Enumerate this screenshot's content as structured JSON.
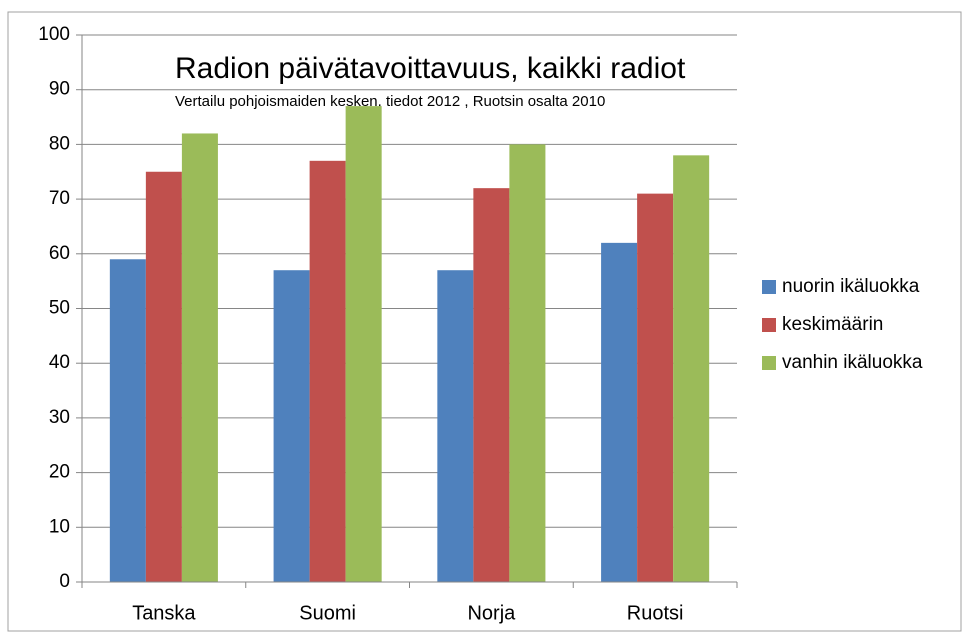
{
  "chart_data": {
    "type": "bar",
    "title": "Radion päivätavoittavuus,  kaikki radiot",
    "subtitle": "Vertailu pohjoismaiden  kesken, tiedot 2012 , Ruotsin osalta 2010",
    "categories": [
      "Tanska",
      "Suomi",
      "Norja",
      "Ruotsi"
    ],
    "series": [
      {
        "name": "nuorin ikäluokka",
        "color": "#4f81bd",
        "values": [
          59,
          57,
          57,
          62
        ]
      },
      {
        "name": "keskimäärin",
        "color": "#c0504d",
        "values": [
          75,
          77,
          72,
          71
        ]
      },
      {
        "name": "vanhin ikäluokka",
        "color": "#9bbb59",
        "values": [
          82,
          87,
          80,
          78
        ]
      }
    ],
    "ylim": [
      0,
      100
    ],
    "yticks": [
      0,
      10,
      20,
      30,
      40,
      50,
      60,
      70,
      80,
      90,
      100
    ],
    "grid": true,
    "legend": "right"
  }
}
